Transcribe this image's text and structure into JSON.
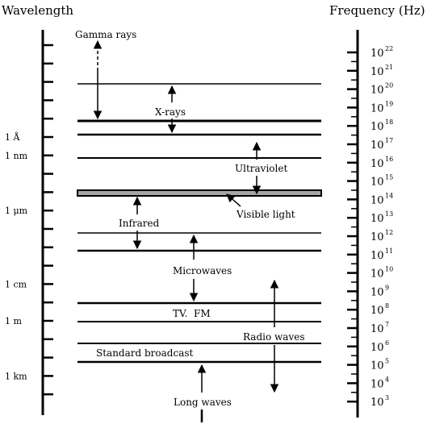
{
  "header": {
    "wavelength_title": "Wavelength",
    "frequency_title": "Frequency (Hz)"
  },
  "wavelength_marks": [
    {
      "label": "1 Å",
      "tick_index": 5
    },
    {
      "label": "1 nm",
      "tick_index": 6
    },
    {
      "label": "1 μm",
      "tick_index": 9
    },
    {
      "label": "1 cm",
      "tick_index": 13
    },
    {
      "label": "1 m",
      "tick_index": 15
    },
    {
      "label": "1 km",
      "tick_index": 18
    }
  ],
  "frequency_labels": [
    {
      "base": "10",
      "exp": "22"
    },
    {
      "base": "10",
      "exp": "21"
    },
    {
      "base": "10",
      "exp": "20"
    },
    {
      "base": "10",
      "exp": "19"
    },
    {
      "base": "10",
      "exp": "18"
    },
    {
      "base": "10",
      "exp": "17"
    },
    {
      "base": "10",
      "exp": "16"
    },
    {
      "base": "10",
      "exp": "15"
    },
    {
      "base": "10",
      "exp": "14"
    },
    {
      "base": "10",
      "exp": "13"
    },
    {
      "base": "10",
      "exp": "12"
    },
    {
      "base": "10",
      "exp": "11"
    },
    {
      "base": "10",
      "exp": "10"
    },
    {
      "base": "10",
      "exp": "9"
    },
    {
      "base": "10",
      "exp": "8"
    },
    {
      "base": "10",
      "exp": "7"
    },
    {
      "base": "10",
      "exp": "6"
    },
    {
      "base": "10",
      "exp": "5"
    },
    {
      "base": "10",
      "exp": "4"
    },
    {
      "base": "10",
      "exp": "3"
    }
  ],
  "bands": {
    "gamma": "Gamma rays",
    "xrays": "X-rays",
    "ultraviolet": "Ultraviolet",
    "visible": "Visible light",
    "infrared": "Infrared",
    "microwaves": "Microwaves",
    "tvfm": "TV.  FM",
    "radio": "Radio waves",
    "standard": "Standard broadcast",
    "long": "Long waves"
  }
}
